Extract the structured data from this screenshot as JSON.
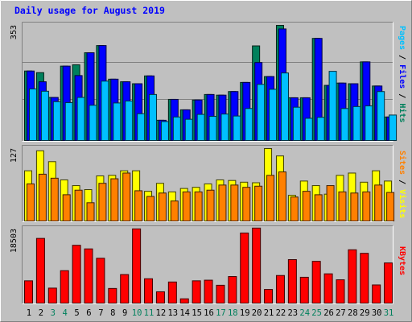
{
  "chart_data": {
    "type": "bar",
    "title": "Daily usage for August 2019",
    "colors": {
      "background": "#c0c0c0",
      "hits": "#00805c",
      "files": "#0000ff",
      "pages": "#00c0ff",
      "visits": "#ffff00",
      "sites": "#ff8000",
      "kbytes": "#ff0000",
      "title": "#0000ff",
      "weekend_day": "#00805c",
      "weekday": "#000000"
    },
    "days": [
      "1",
      "2",
      "3",
      "4",
      "5",
      "6",
      "7",
      "8",
      "9",
      "10",
      "11",
      "12",
      "13",
      "14",
      "15",
      "16",
      "17",
      "18",
      "19",
      "20",
      "21",
      "22",
      "23",
      "24",
      "25",
      "26",
      "27",
      "28",
      "29",
      "30",
      "31"
    ],
    "weekend_days": [
      3,
      4,
      10,
      11,
      17,
      18,
      24,
      25,
      31
    ],
    "panels": [
      {
        "id": "usage",
        "max_label": "353",
        "ymax": 353,
        "legend": [
          {
            "text": "Pages",
            "color": "#00c0ff"
          },
          {
            "text": " / ",
            "color": "#000000"
          },
          {
            "text": "Files",
            "color": "#0000ff"
          },
          {
            "text": " / ",
            "color": "#000000"
          },
          {
            "text": "Hits",
            "color": "#00805c"
          }
        ],
        "series": [
          {
            "name": "Hits",
            "color": "#00805c",
            "values": [
              213,
              208,
              132,
              228,
              232,
              269,
              291,
              188,
              180,
              174,
              198,
              62,
              126,
              94,
              124,
              141,
              139,
              150,
              178,
              290,
              196,
              353,
              131,
              131,
              313,
              169,
              176,
              174,
              241,
              167,
              72
            ]
          },
          {
            "name": "Files",
            "color": "#0000ff",
            "values": [
              213,
              180,
              132,
              228,
              199,
              269,
              291,
              188,
              180,
              174,
              198,
              62,
              126,
              94,
              124,
              141,
              139,
              150,
              178,
              239,
              196,
              342,
              131,
              131,
              313,
              169,
              176,
              174,
              241,
              167,
              72
            ]
          },
          {
            "name": "Pages",
            "color": "#00c0ff",
            "values": [
              158,
              151,
              119,
              116,
              132,
              108,
              182,
              115,
              121,
              82,
              141,
              58,
              72,
              65,
              80,
              74,
              81,
              75,
              98,
              172,
              157,
              207,
              102,
              68,
              71,
              212,
              98,
              104,
              106,
              150,
              78
            ]
          }
        ]
      },
      {
        "id": "visits",
        "max_label": "127",
        "ymax": 127,
        "legend": [
          {
            "text": "Sites",
            "color": "#ff8000"
          },
          {
            "text": " / ",
            "color": "#000000"
          },
          {
            "text": "Visits",
            "color": "#ffff00"
          }
        ],
        "series": [
          {
            "name": "Visits",
            "color": "#ffff00",
            "values": [
              88,
              123,
              104,
              72,
              62,
              55,
              79,
              80,
              88,
              88,
              52,
              66,
              51,
              57,
              59,
              65,
              72,
              71,
              68,
              67,
              127,
              114,
              45,
              70,
              62,
              47,
              80,
              84,
              68,
              88,
              70
            ]
          },
          {
            "name": "Sites",
            "color": "#ff8000",
            "values": [
              65,
              82,
              75,
              46,
              54,
              32,
              66,
              74,
              84,
              53,
              43,
              49,
              35,
              51,
              51,
              54,
              63,
              63,
              59,
              61,
              80,
              86,
              42,
              52,
              46,
              62,
              51,
              49,
              51,
              63,
              50
            ]
          }
        ]
      },
      {
        "id": "kbytes",
        "max_label": "18503",
        "ymax": 18503,
        "legend": [
          {
            "text": "KBytes",
            "color": "#ff0000"
          }
        ],
        "series": [
          {
            "name": "KBytes",
            "color": "#ff0000",
            "values": [
              5560,
              16160,
              3740,
              8100,
              14440,
              13540,
              11200,
              3650,
              7130,
              18540,
              6080,
              2820,
              5270,
              1070,
              5560,
              5720,
              4450,
              6630,
              17510,
              18740,
              3400,
              6890,
              10860,
              6450,
              10430,
              7310,
              5820,
              13320,
              12430,
              4530,
              10030
            ]
          }
        ]
      }
    ]
  }
}
